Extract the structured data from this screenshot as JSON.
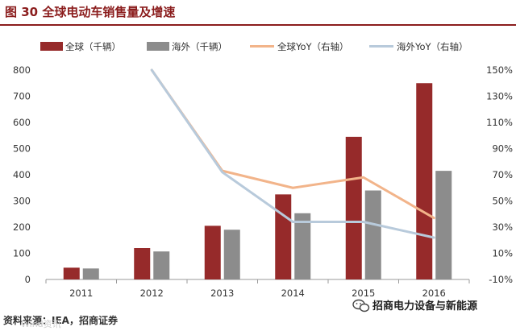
{
  "header": {
    "title": "图 30  全球电动车销售量及增速"
  },
  "footer": {
    "source": "资料来源：IEA，招商证券",
    "brand": "招商电力设备与新能源",
    "watermark": "Wind资讯"
  },
  "colors": {
    "title": "#8b1d1d",
    "rule": "#8b1d1d",
    "global_bar": "#962a2a",
    "overseas_bar": "#8c8c8c",
    "global_yoy": "#f2b48a",
    "overseas_yoy": "#b8cadb",
    "axis": "#9a9a9a"
  },
  "chart_data": {
    "type": "bar",
    "title": "图 30  全球电动车销售量及增速",
    "categories": [
      "2011",
      "2012",
      "2013",
      "2014",
      "2015",
      "2016"
    ],
    "series": [
      {
        "name": "全球（千辆）",
        "type": "bar",
        "axis": "left",
        "values": [
          45,
          120,
          205,
          325,
          545,
          750
        ]
      },
      {
        "name": "海外（千辆）",
        "type": "bar",
        "axis": "left",
        "values": [
          42,
          107,
          190,
          253,
          340,
          415
        ]
      },
      {
        "name": "全球YoY（右轴）",
        "type": "line",
        "axis": "right",
        "values": [
          null,
          150,
          73,
          60,
          68,
          37
        ]
      },
      {
        "name": "海外YoY（右轴）",
        "type": "line",
        "axis": "right",
        "values": [
          null,
          150,
          72,
          34,
          34,
          22
        ]
      }
    ],
    "y_left": {
      "min": 0,
      "max": 800,
      "ticks": [
        0,
        100,
        200,
        300,
        400,
        500,
        600,
        700,
        800
      ],
      "tick_labels": [
        "0",
        "100",
        "200",
        "300",
        "400",
        "500",
        "600",
        "700",
        "800"
      ]
    },
    "y_right": {
      "min": -10,
      "max": 150,
      "ticks": [
        -10,
        10,
        30,
        50,
        70,
        90,
        110,
        130,
        150
      ],
      "tick_labels": [
        "-10%",
        "10%",
        "30%",
        "50%",
        "70%",
        "90%",
        "110%",
        "130%",
        "150%"
      ]
    },
    "legend_position": "top",
    "grid": false
  }
}
